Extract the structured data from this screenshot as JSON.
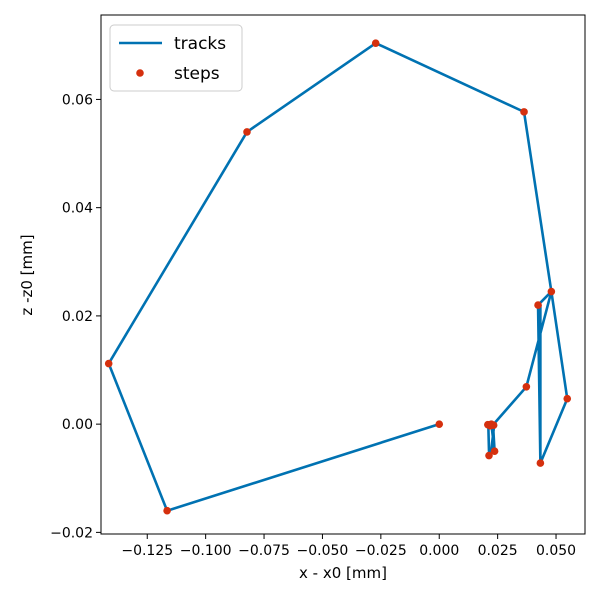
{
  "chart_data": {
    "type": "line+scatter",
    "xlabel": "x - x0 [mm]",
    "ylabel": "z -z0 [mm]",
    "xlim": [
      -0.1448,
      0.0624
    ],
    "ylim": [
      -0.0203,
      0.0756
    ],
    "xticks": [
      -0.125,
      -0.1,
      -0.075,
      -0.05,
      -0.025,
      0.0,
      0.025,
      0.05
    ],
    "xtick_labels": [
      "−0.125",
      "−0.100",
      "−0.075",
      "−0.050",
      "−0.025",
      "0.000",
      "0.025",
      "0.050"
    ],
    "yticks": [
      -0.02,
      0.0,
      0.02,
      0.04,
      0.06
    ],
    "ytick_labels": [
      "−0.02",
      "0.00",
      "0.02",
      "0.04",
      "0.06"
    ],
    "grid": false,
    "legend": {
      "position": "top-left",
      "entries": [
        "tracks",
        "steps"
      ]
    },
    "colors": {
      "tracks": "#0072b2",
      "steps": "#d5300e"
    },
    "series": [
      {
        "name": "tracks",
        "kind": "line",
        "x": [
          0.0,
          -0.1165,
          -0.1415,
          -0.0823,
          -0.0272,
          0.0363,
          0.048,
          0.0548,
          0.0433,
          0.0433,
          0.0433,
          0.0423,
          0.048,
          0.0373,
          0.0233,
          0.0233,
          0.022,
          0.0213,
          0.021,
          0.0223,
          0.0237,
          0.023,
          0.0218
        ],
        "y": [
          0.0,
          -0.016,
          0.0112,
          0.054,
          0.0704,
          0.0577,
          0.0245,
          0.0047,
          -0.0072,
          0.022,
          -0.0072,
          0.022,
          0.0245,
          0.0069,
          0.0,
          -0.001,
          -0.0058,
          -0.005,
          0.0,
          0.0,
          -0.005,
          0.0,
          -0.0003
        ]
      },
      {
        "name": "steps",
        "kind": "scatter",
        "x": [
          0.0,
          -0.1165,
          -0.1415,
          -0.0823,
          -0.0272,
          0.0363,
          0.048,
          0.0548,
          0.0433,
          0.0423,
          0.0373,
          0.0233,
          0.0213,
          0.0208,
          0.0223,
          0.0237,
          0.0218
        ],
        "y": [
          0.0,
          -0.016,
          0.0112,
          0.054,
          0.0704,
          0.0577,
          0.0245,
          0.0047,
          -0.0072,
          0.022,
          0.0069,
          -0.0002,
          -0.0058,
          -0.0001,
          0.0,
          -0.005,
          -0.0003
        ]
      }
    ]
  }
}
